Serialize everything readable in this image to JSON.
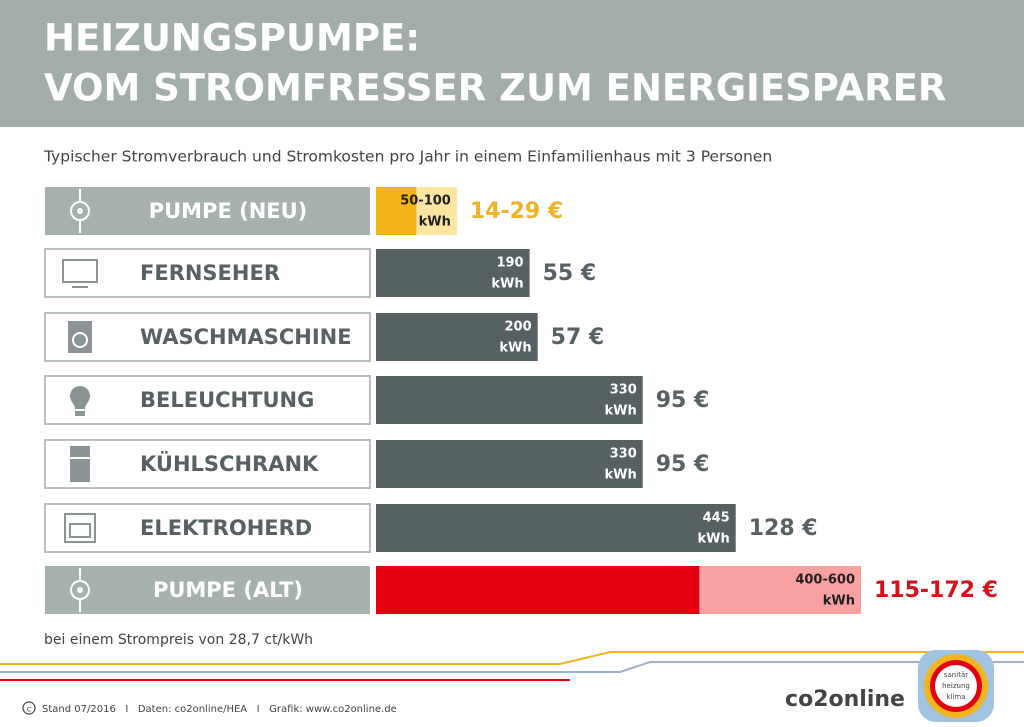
{
  "chart_data": {
    "type": "bar",
    "title": [
      "HEIZUNGSPUMPE:",
      "VOM STROMFRESSER ZUM ENERGIESPARER"
    ],
    "subtitle": "Typischer Stromverbrauch und Stromkosten pro Jahr in einem Einfamilienhaus mit 3 Personen",
    "categories": [
      "PUMPE (NEU)",
      "FERNSEHER",
      "WASCHMASCHINE",
      "BELEUCHTUNG",
      "KÜHLSCHRANK",
      "ELEKTROHERD",
      "PUMPE (ALT)"
    ],
    "values": [
      100,
      190,
      200,
      330,
      330,
      445,
      600
    ],
    "range_low": [
      50,
      null,
      null,
      null,
      null,
      null,
      400
    ],
    "value_labels": [
      "50-100",
      "190",
      "200",
      "330",
      "330",
      "445",
      "400-600"
    ],
    "unit": "kWh",
    "cost_labels": [
      "14-29 €",
      "55 €",
      "57 €",
      "95 €",
      "95 €",
      "128 €",
      "115-172 €"
    ],
    "colors": [
      "#f3b41c",
      "#566163",
      "#566163",
      "#566163",
      "#566163",
      "#566163",
      "#e3000f"
    ],
    "range_colors": [
      "#fde6a2",
      null,
      null,
      null,
      null,
      null,
      "#f7a1a1"
    ],
    "cost_colors": [
      "#f0b323",
      "#566163",
      "#566163",
      "#566163",
      "#566163",
      "#566163",
      "#d3121b"
    ],
    "xlim": [
      0,
      600
    ],
    "note": "bei einem Strompreis von 28,7 ct/kWh",
    "footer": "Stand 07/2016   I   Daten: co2online/HEA   I   Grafik: www.co2online.de",
    "brand": "co2online",
    "badge": [
      "sanitär",
      "heizung",
      "klima"
    ]
  }
}
